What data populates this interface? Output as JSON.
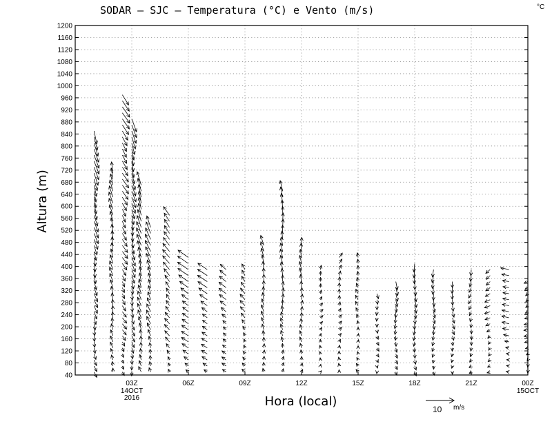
{
  "chart_data": {
    "type": "wind-barb (vector) profile plot",
    "title": "SODAR – SJC – Temperatura (°C) e Vento (m/s)",
    "corner_unit": "°C",
    "ylabel": "Altura (m)",
    "xlabel": "Hora (local)",
    "ylim": [
      40,
      1200
    ],
    "yticks": [
      40,
      80,
      120,
      160,
      200,
      240,
      280,
      320,
      360,
      400,
      440,
      480,
      520,
      560,
      600,
      640,
      680,
      720,
      760,
      800,
      840,
      880,
      920,
      960,
      1000,
      1040,
      1080,
      1120,
      1160,
      1200
    ],
    "xlim": [
      0,
      24
    ],
    "xticks": [
      {
        "hour": 3,
        "label": "03Z",
        "sub": [
          "14OCT",
          "2016"
        ]
      },
      {
        "hour": 6,
        "label": "06Z",
        "sub": []
      },
      {
        "hour": 9,
        "label": "09Z",
        "sub": []
      },
      {
        "hour": 12,
        "label": "12Z",
        "sub": []
      },
      {
        "hour": 15,
        "label": "15Z",
        "sub": []
      },
      {
        "hour": 18,
        "label": "18Z",
        "sub": []
      },
      {
        "hour": 21,
        "label": "21Z",
        "sub": []
      },
      {
        "hour": 24,
        "label": "00Z",
        "sub": [
          "15OCT"
        ]
      }
    ],
    "grid": true,
    "reference_vector": {
      "value": 10,
      "unit": "m/s",
      "label": "10",
      "unit_label": "m/s"
    },
    "profiles": [
      {
        "hour": 1.0,
        "top": 860,
        "u": 1.4,
        "v": -4.8
      },
      {
        "hour": 2.0,
        "top": 720,
        "u": -1.0,
        "v": 4.2
      },
      {
        "hour": 2.5,
        "top": 980,
        "u": 2.2,
        "v": -3.6
      },
      {
        "hour": 3.0,
        "top": 900,
        "u": 1.2,
        "v": -4.4
      },
      {
        "hour": 3.5,
        "top": 680,
        "u": -1.4,
        "v": 4.8
      },
      {
        "hour": 4.0,
        "top": 540,
        "u": -1.6,
        "v": 4.2
      },
      {
        "hour": 5.0,
        "top": 580,
        "u": -2.4,
        "v": 3.2
      },
      {
        "hour": 6.0,
        "top": 440,
        "u": -3.6,
        "v": 2.6
      },
      {
        "hour": 7.0,
        "top": 400,
        "u": -3.2,
        "v": 2.2
      },
      {
        "hour": 8.0,
        "top": 400,
        "u": -2.4,
        "v": 2.0
      },
      {
        "hour": 9.0,
        "top": 400,
        "u": -1.6,
        "v": 2.2
      },
      {
        "hour": 10.0,
        "top": 480,
        "u": -0.6,
        "v": 3.4
      },
      {
        "hour": 11.0,
        "top": 660,
        "u": -0.4,
        "v": 3.6
      },
      {
        "hour": 12.0,
        "top": 480,
        "u": -0.2,
        "v": 3.0
      },
      {
        "hour": 13.0,
        "top": 400,
        "u": 0.6,
        "v": 1.4
      },
      {
        "hour": 14.0,
        "top": 440,
        "u": 0.6,
        "v": 1.8
      },
      {
        "hour": 15.0,
        "top": 440,
        "u": -0.6,
        "v": 1.8
      },
      {
        "hour": 16.0,
        "top": 320,
        "u": 0.4,
        "v": -1.8
      },
      {
        "hour": 17.0,
        "top": 360,
        "u": 0.2,
        "v": -2.8
      },
      {
        "hour": 18.0,
        "top": 410,
        "u": 0.2,
        "v": -3.2
      },
      {
        "hour": 19.0,
        "top": 390,
        "u": 0.0,
        "v": -2.8
      },
      {
        "hour": 20.0,
        "top": 360,
        "u": 0.4,
        "v": -2.4
      },
      {
        "hour": 21.0,
        "top": 390,
        "u": -0.6,
        "v": -2.0
      },
      {
        "hour": 22.0,
        "top": 400,
        "u": -2.0,
        "v": -1.2
      },
      {
        "hour": 23.0,
        "top": 400,
        "u": -3.0,
        "v": 0.6
      },
      {
        "hour": 24.0,
        "top": 360,
        "u": -1.4,
        "v": -0.6
      }
    ]
  }
}
